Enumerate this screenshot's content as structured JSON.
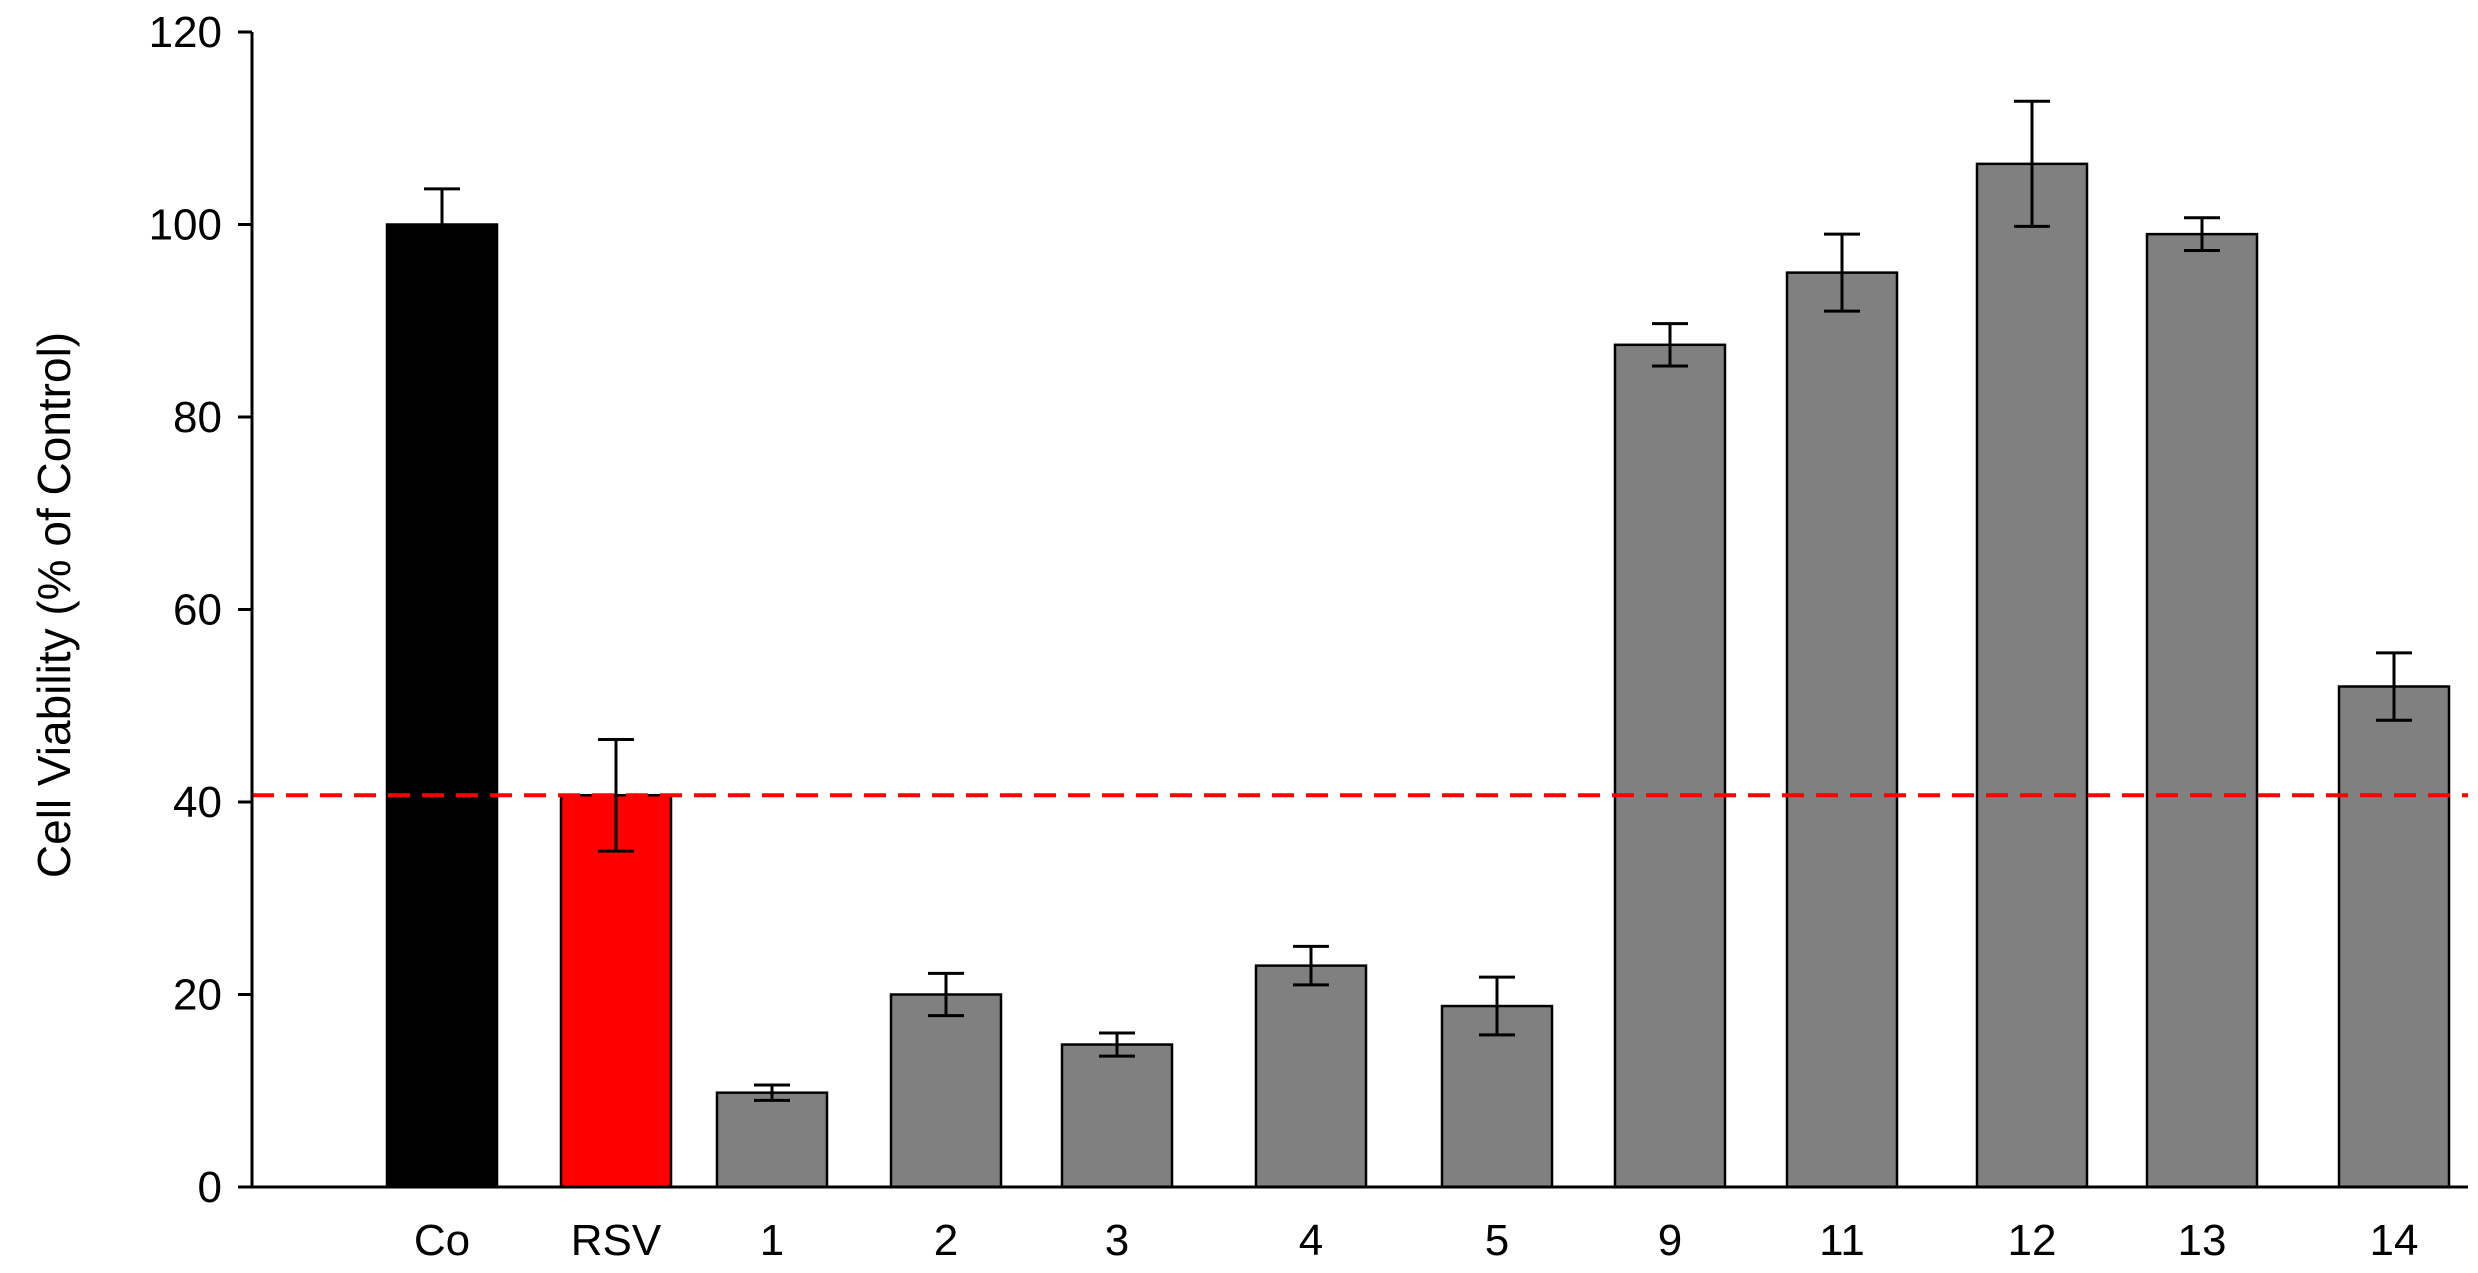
{
  "chart_data": {
    "type": "bar",
    "title": "",
    "xlabel": "",
    "ylabel": "Cell Viability (% of Control)",
    "ylim": [
      0,
      120
    ],
    "yticks": [
      0,
      20,
      40,
      60,
      80,
      100,
      120
    ],
    "grid": false,
    "legend": "none",
    "categories": [
      "Co",
      "RSV",
      "1",
      "2",
      "3",
      "4",
      "5",
      "9",
      "11",
      "12",
      "13",
      "14"
    ],
    "values": [
      100,
      40.7,
      9.8,
      20.0,
      14.8,
      23.0,
      18.8,
      87.5,
      95.0,
      106.3,
      99.0,
      52.0
    ],
    "errors": [
      3.7,
      5.8,
      0.8,
      2.2,
      1.2,
      2.0,
      3.0,
      2.2,
      4.0,
      6.5,
      1.7,
      3.5
    ],
    "bar_colors": [
      "#000000",
      "#ff0000",
      "#808080",
      "#808080",
      "#808080",
      "#808080",
      "#808080",
      "#808080",
      "#808080",
      "#808080",
      "#808080",
      "#808080"
    ],
    "reference_line": {
      "value": 40.7,
      "color": "#ff0000",
      "style": "dashed"
    }
  }
}
